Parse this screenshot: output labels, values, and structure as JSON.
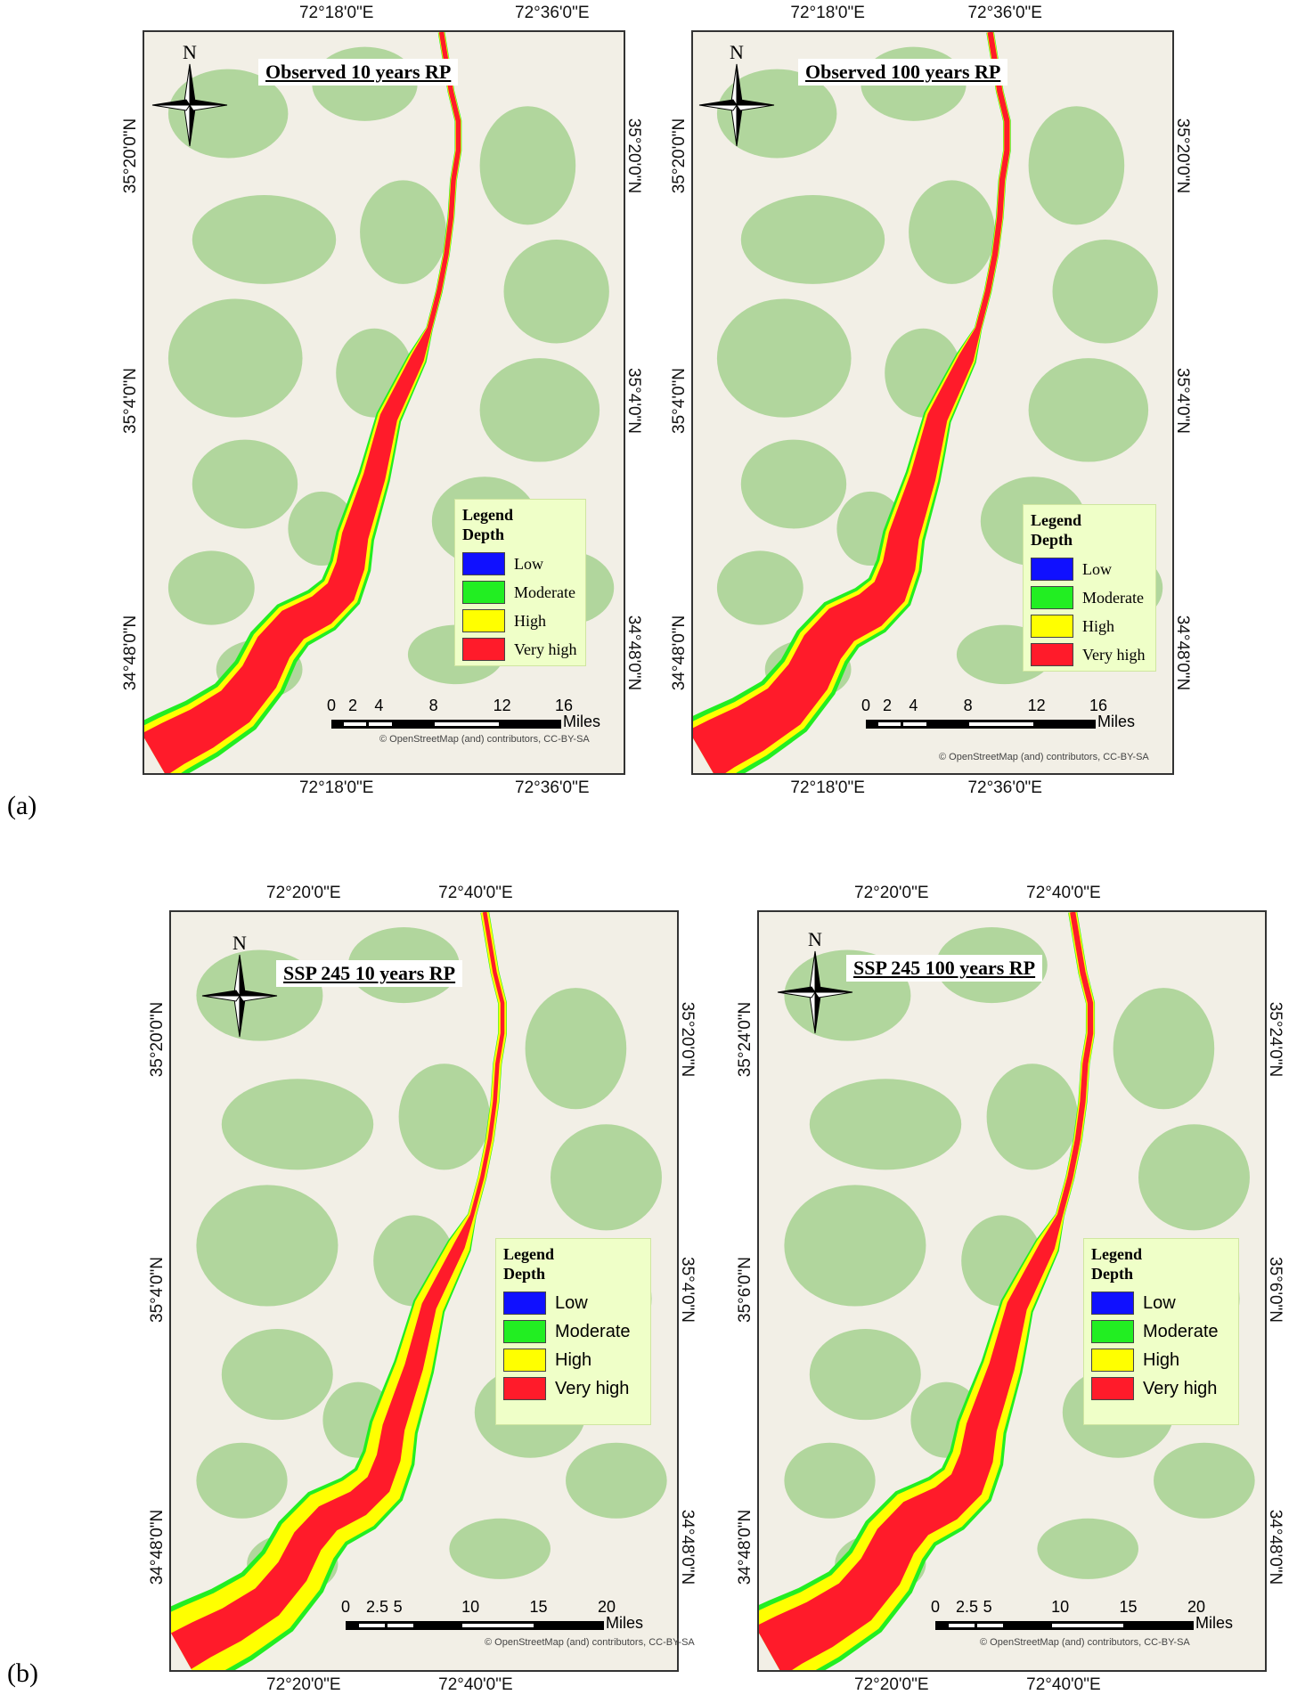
{
  "figure_labels": {
    "a": "(a)",
    "b": "(b)"
  },
  "colors": {
    "low": "#1010ff",
    "moderate": "#22ee22",
    "high": "#ffff00",
    "very_high": "#ff1b2a",
    "terrain_green": "#a6d18f",
    "background": "#f2efe6",
    "legend_bg": "#efffc8"
  },
  "panels": [
    {
      "title": "Observed 10 years RP",
      "top_lon": [
        "72°18'0\"E",
        "72°36'0\"E"
      ],
      "bottom_lon": [
        "72°18'0\"E",
        "72°36'0\"E"
      ],
      "left_lat": [
        "35°20'0\"N",
        "35°4'0\"N",
        "34°48'0\"N"
      ],
      "right_lat": [
        "35°20'0\"N",
        "35°4'0\"N",
        "34°48'0\"N"
      ],
      "north": "N",
      "legend": {
        "title1": "Legend",
        "title2": "Depth",
        "items": [
          "Low",
          "Moderate",
          "High",
          "Very high"
        ]
      },
      "scale": {
        "ticks": [
          "0",
          "2",
          "4",
          "8",
          "12",
          "16"
        ],
        "unit": "Miles"
      },
      "credit": "© OpenStreetMap (and) contributors, CC-BY-SA"
    },
    {
      "title": "Observed 100 years RP",
      "top_lon": [
        "72°18'0\"E",
        "72°36'0\"E"
      ],
      "bottom_lon": [
        "72°18'0\"E",
        "72°36'0\"E"
      ],
      "left_lat": [
        "35°20'0\"N",
        "35°4'0\"N",
        "34°48'0\"N"
      ],
      "right_lat": [
        "35°20'0\"N",
        "35°4'0\"N",
        "34°48'0\"N"
      ],
      "north": "N",
      "legend": {
        "title1": "Legend",
        "title2": "Depth",
        "items": [
          "Low",
          "Moderate",
          "High",
          "Very high"
        ]
      },
      "scale": {
        "ticks": [
          "0",
          "2",
          "4",
          "8",
          "12",
          "16"
        ],
        "unit": "Miles"
      },
      "credit": "© OpenStreetMap (and) contributors, CC-BY-SA"
    },
    {
      "title": "SSP 245 10 years RP",
      "top_lon": [
        "72°20'0\"E",
        "72°40'0\"E"
      ],
      "bottom_lon": [
        "72°20'0\"E",
        "72°40'0\"E"
      ],
      "left_lat": [
        "35°20'0\"N",
        "35°4'0\"N",
        "34°48'0\"N"
      ],
      "right_lat": [
        "35°20'0\"N",
        "35°4'0\"N",
        "34°48'0\"N"
      ],
      "north": "N",
      "legend": {
        "title1": "Legend",
        "title2": "Depth",
        "items": [
          "Low",
          "Moderate",
          "High",
          "Very high"
        ]
      },
      "scale": {
        "ticks": [
          "0",
          "2.5",
          "5",
          "10",
          "15",
          "20"
        ],
        "unit": "Miles"
      },
      "credit": "© OpenStreetMap (and) contributors, CC-BY-SA"
    },
    {
      "title": "SSP 245 100 years RP",
      "top_lon": [
        "72°20'0\"E",
        "72°40'0\"E"
      ],
      "bottom_lon": [
        "72°20'0\"E",
        "72°40'0\"E"
      ],
      "left_lat": [
        "35°24'0\"N",
        "35°6'0\"N",
        "34°48'0\"N"
      ],
      "right_lat": [
        "35°24'0\"N",
        "35°6'0\"N",
        "34°48'0\"N"
      ],
      "north": "N",
      "legend": {
        "title1": "Legend",
        "title2": "Depth",
        "items": [
          "Low",
          "Moderate",
          "High",
          "Very high"
        ]
      },
      "scale": {
        "ticks": [
          "0",
          "2.5",
          "5",
          "10",
          "15",
          "20"
        ],
        "unit": "Miles"
      },
      "credit": "© OpenStreetMap (and) contributors, CC-BY-SA"
    }
  ]
}
